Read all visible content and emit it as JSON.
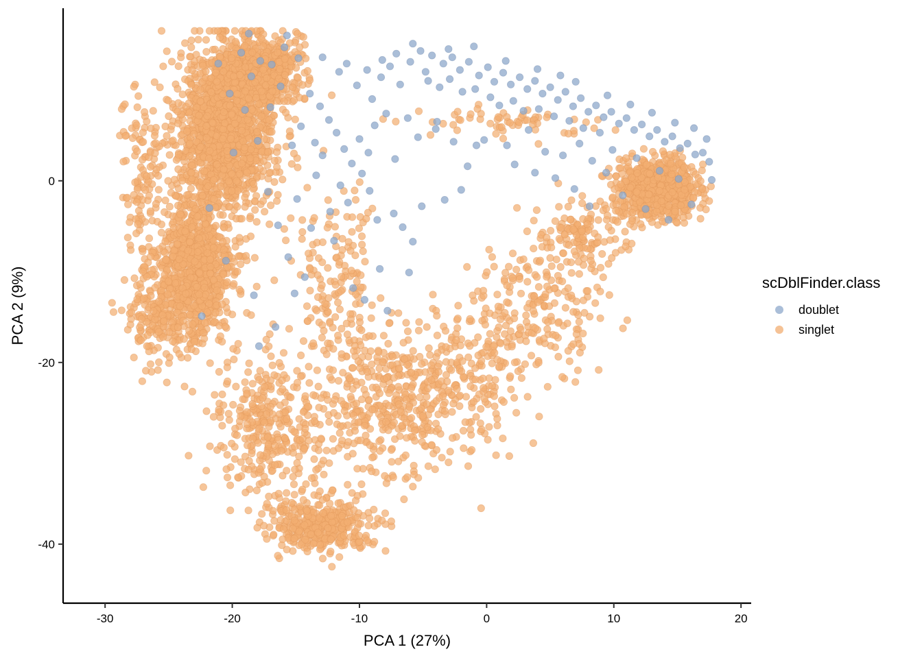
{
  "chart_data": {
    "type": "scatter",
    "xlabel": "PCA 1 (27%)",
    "ylabel": "PCA 2 (9%)",
    "xlim": [
      -33.3,
      20.8
    ],
    "ylim": [
      -46.5,
      19.0
    ],
    "xticks": [
      -30,
      -20,
      -10,
      0,
      10,
      20
    ],
    "yticks": [
      -40,
      -20,
      0
    ],
    "grid": false,
    "legend": {
      "title": "scDblFinder.class",
      "placement": "right",
      "entries": [
        {
          "label": "doublet",
          "color": "#8DA8CB"
        },
        {
          "label": "singlet",
          "color": "#F2AE72"
        }
      ]
    },
    "series": [
      {
        "name": "doublet",
        "color": "#8DA8CB",
        "points": [
          [
            -17.8,
            13.2
          ],
          [
            -18.5,
            11.5
          ],
          [
            -16.9,
            12.8
          ],
          [
            -15.7,
            16.0
          ],
          [
            -19.3,
            14.1
          ],
          [
            -16.2,
            10.4
          ],
          [
            -14.8,
            13.5
          ],
          [
            -13.9,
            9.6
          ],
          [
            -13.1,
            8.2
          ],
          [
            -12.4,
            6.7
          ],
          [
            -11.8,
            5.3
          ],
          [
            -13.5,
            4.2
          ],
          [
            -12.9,
            2.8
          ],
          [
            -11.2,
            3.5
          ],
          [
            -10.6,
            1.9
          ],
          [
            -10.0,
            4.6
          ],
          [
            -9.3,
            3.1
          ],
          [
            -9.8,
            0.8
          ],
          [
            -11.5,
            -0.5
          ],
          [
            -10.9,
            -2.4
          ],
          [
            -9.2,
            -1.1
          ],
          [
            -12.3,
            -3.4
          ],
          [
            -13.8,
            -5.2
          ],
          [
            -15.6,
            -8.4
          ],
          [
            -14.3,
            -10.6
          ],
          [
            -15.1,
            -12.4
          ],
          [
            -10.5,
            -11.8
          ],
          [
            -9.6,
            -13.1
          ],
          [
            -8.4,
            -9.7
          ],
          [
            -7.8,
            -14.3
          ],
          [
            -6.1,
            -10.1
          ],
          [
            -5.8,
            -6.7
          ],
          [
            -6.6,
            -5.1
          ],
          [
            -7.3,
            -3.6
          ],
          [
            -8.6,
            -4.3
          ],
          [
            -5.1,
            -2.8
          ],
          [
            -3.3,
            -2.1
          ],
          [
            -2.0,
            -1.0
          ],
          [
            -1.5,
            1.6
          ],
          [
            -0.8,
            3.9
          ],
          [
            -2.6,
            4.3
          ],
          [
            -4.0,
            5.7
          ],
          [
            -6.2,
            6.9
          ],
          [
            -7.9,
            7.4
          ],
          [
            -9.0,
            9.0
          ],
          [
            -10.2,
            10.5
          ],
          [
            -11.6,
            12.0
          ],
          [
            -12.9,
            13.6
          ],
          [
            -11.0,
            12.9
          ],
          [
            -9.4,
            12.2
          ],
          [
            -8.2,
            13.3
          ],
          [
            -7.1,
            14.0
          ],
          [
            -6.0,
            13.1
          ],
          [
            -5.2,
            14.3
          ],
          [
            -4.3,
            13.8
          ],
          [
            -3.4,
            12.9
          ],
          [
            -2.7,
            13.6
          ],
          [
            -2.1,
            12.2
          ],
          [
            -1.4,
            13.1
          ],
          [
            -0.6,
            11.6
          ],
          [
            0.1,
            12.5
          ],
          [
            0.6,
            10.9
          ],
          [
            1.3,
            11.9
          ],
          [
            1.9,
            10.6
          ],
          [
            2.6,
            11.4
          ],
          [
            3.2,
            10.1
          ],
          [
            3.8,
            11.0
          ],
          [
            4.4,
            9.6
          ],
          [
            5.0,
            10.3
          ],
          [
            5.6,
            8.9
          ],
          [
            6.2,
            9.8
          ],
          [
            6.8,
            8.2
          ],
          [
            7.4,
            9.1
          ],
          [
            8.0,
            7.6
          ],
          [
            8.6,
            8.3
          ],
          [
            9.2,
            7.0
          ],
          [
            9.8,
            7.6
          ],
          [
            10.4,
            6.3
          ],
          [
            11.0,
            6.9
          ],
          [
            11.6,
            5.6
          ],
          [
            12.2,
            6.2
          ],
          [
            12.8,
            4.9
          ],
          [
            13.4,
            5.6
          ],
          [
            14.0,
            4.3
          ],
          [
            14.6,
            4.9
          ],
          [
            15.2,
            3.6
          ],
          [
            15.8,
            4.1
          ],
          [
            16.4,
            2.9
          ],
          [
            17.0,
            3.1
          ],
          [
            17.5,
            2.1
          ],
          [
            -4.6,
            11.0
          ],
          [
            -3.7,
            10.3
          ],
          [
            -2.9,
            11.2
          ],
          [
            -1.9,
            9.8
          ],
          [
            -0.9,
            10.1
          ],
          [
            0.3,
            9.2
          ],
          [
            1.0,
            8.3
          ],
          [
            2.1,
            8.8
          ],
          [
            2.9,
            7.7
          ],
          [
            4.1,
            7.9
          ],
          [
            5.3,
            7.1
          ],
          [
            6.5,
            6.6
          ],
          [
            7.6,
            5.8
          ],
          [
            8.9,
            5.3
          ],
          [
            3.3,
            5.6
          ],
          [
            4.6,
            3.2
          ],
          [
            6.0,
            2.8
          ],
          [
            7.3,
            4.1
          ],
          [
            8.3,
            2.2
          ],
          [
            1.6,
            3.9
          ],
          [
            -0.2,
            4.5
          ],
          [
            2.2,
            1.8
          ],
          [
            3.8,
            0.9
          ],
          [
            5.4,
            0.3
          ],
          [
            6.9,
            -0.9
          ],
          [
            -3.9,
            6.5
          ],
          [
            -5.4,
            4.8
          ],
          [
            -7.2,
            2.4
          ],
          [
            -8.8,
            6.1
          ],
          [
            -6.8,
            10.6
          ],
          [
            -8.3,
            11.4
          ],
          [
            -4.8,
            12.0
          ],
          [
            -3.0,
            14.5
          ],
          [
            -5.8,
            15.1
          ],
          [
            -7.6,
            12.6
          ],
          [
            -1.0,
            14.8
          ],
          [
            1.5,
            13.2
          ],
          [
            4.0,
            12.3
          ],
          [
            5.8,
            11.6
          ],
          [
            7.0,
            10.9
          ],
          [
            9.5,
            9.4
          ],
          [
            11.3,
            8.4
          ],
          [
            13.0,
            7.5
          ],
          [
            14.8,
            6.4
          ],
          [
            16.3,
            5.8
          ],
          [
            17.3,
            4.6
          ],
          [
            -14.6,
            6.0
          ],
          [
            -15.3,
            3.9
          ],
          [
            -13.4,
            0.6
          ],
          [
            -14.9,
            -2.0
          ],
          [
            -12.0,
            -6.6
          ],
          [
            -16.4,
            -4.9
          ],
          [
            -17.2,
            -1.2
          ],
          [
            -18.0,
            4.4
          ],
          [
            -19.0,
            7.8
          ],
          [
            -20.2,
            9.6
          ],
          [
            -17.0,
            8.1
          ],
          [
            -15.9,
            14.7
          ],
          [
            -18.7,
            16.2
          ],
          [
            -21.1,
            12.9
          ],
          [
            -19.9,
            3.1
          ],
          [
            -21.8,
            -3.0
          ],
          [
            -20.5,
            -8.8
          ],
          [
            -18.3,
            -12.6
          ],
          [
            -22.4,
            -14.9
          ],
          [
            -16.6,
            -16.1
          ],
          [
            -17.9,
            -18.2
          ],
          [
            9.9,
            3.4
          ],
          [
            11.8,
            2.5
          ],
          [
            13.6,
            1.1
          ],
          [
            15.1,
            0.2
          ],
          [
            10.7,
            -1.6
          ],
          [
            12.5,
            -3.1
          ],
          [
            14.3,
            -4.3
          ],
          [
            16.1,
            -2.6
          ],
          [
            9.4,
            0.9
          ],
          [
            17.7,
            0.1
          ],
          [
            8.1,
            -2.8
          ]
        ]
      },
      {
        "name": "singlet",
        "color": "#F2AE72",
        "clusters": [
          {
            "center": [
              -20.5,
              5.5
            ],
            "spread": [
              3.2,
              7.5
            ],
            "count": 1500
          },
          {
            "center": [
              -23.0,
              -10.0
            ],
            "spread": [
              2.6,
              6.5
            ],
            "count": 900
          },
          {
            "center": [
              -18.0,
              12.0
            ],
            "spread": [
              2.6,
              3.2
            ],
            "count": 650
          },
          {
            "center": [
              13.5,
              -0.8
            ],
            "spread": [
              2.6,
              2.6
            ],
            "count": 750
          },
          {
            "center": [
              -13.0,
              -38.0
            ],
            "spread": [
              3.6,
              2.2
            ],
            "count": 380
          },
          {
            "center": [
              -17.0,
              -27.0
            ],
            "spread": [
              3.8,
              6.5
            ],
            "count": 350
          },
          {
            "center": [
              -8.0,
              -25.0
            ],
            "spread": [
              4.0,
              7.0
            ],
            "count": 320
          },
          {
            "center": [
              -2.0,
              -22.0
            ],
            "spread": [
              4.5,
              7.0
            ],
            "count": 260
          },
          {
            "center": [
              4.0,
              -14.0
            ],
            "spread": [
              4.0,
              5.5
            ],
            "count": 180
          },
          {
            "center": [
              7.5,
              -6.0
            ],
            "spread": [
              3.5,
              3.5
            ],
            "count": 140
          },
          {
            "center": [
              -26.0,
              -15.0
            ],
            "spread": [
              2.2,
              4.5
            ],
            "count": 160
          },
          {
            "center": [
              -27.0,
              0.0
            ],
            "spread": [
              1.6,
              8.0
            ],
            "count": 120
          },
          {
            "center": [
              -12.0,
              -12.0
            ],
            "spread": [
              3.0,
              8.0
            ],
            "count": 160
          },
          {
            "center": [
              1.5,
              6.5
            ],
            "spread": [
              5.5,
              1.6
            ],
            "count": 60
          }
        ],
        "seed": 20240611
      }
    ]
  }
}
